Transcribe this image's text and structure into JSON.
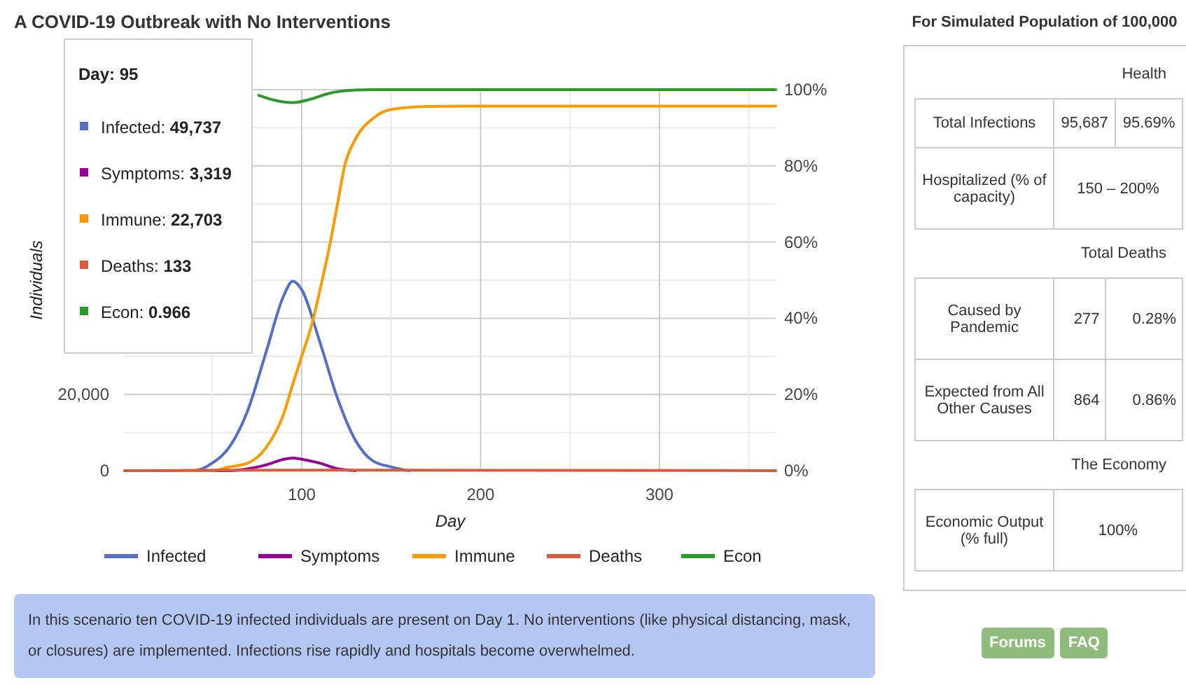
{
  "chart_data": [
    {
      "type": "line",
      "title": "A COVID-19 Outbreak with No Interventions",
      "xlabel": "Day",
      "ylabel": "Individuals",
      "xlim": [
        1,
        365
      ],
      "xticks": [
        {
          "value": 50,
          "label": null
        },
        100,
        {
          "value": 150,
          "label": null
        },
        200,
        {
          "value": 250,
          "label": null
        },
        300,
        {
          "value": 350,
          "label": null
        }
      ],
      "ylim": [
        0,
        100000
      ],
      "yticks": [
        {
          "value": 0,
          "label": "0"
        },
        {
          "value": 10000,
          "label": null
        },
        {
          "value": 20000,
          "label": "20,000"
        },
        {
          "value": 30000,
          "label": null
        },
        {
          "value": 40000,
          "label": null
        },
        {
          "value": 50000,
          "label": null
        },
        {
          "value": 60000,
          "label": null
        },
        {
          "value": 70000,
          "label": null
        },
        {
          "value": 80000,
          "label": null
        },
        {
          "value": 90000,
          "label": null
        },
        {
          "value": 100000,
          "label": null
        }
      ],
      "y2lim": [
        0,
        1
      ],
      "y2ticks": [
        {
          "value": 0,
          "label": "0%"
        },
        {
          "value": 0.2,
          "label": "20%"
        },
        {
          "value": 0.4,
          "label": "40%"
        },
        {
          "value": 0.6,
          "label": "60%"
        },
        {
          "value": 0.8,
          "label": "80%"
        },
        {
          "value": 1,
          "label": "100%"
        }
      ],
      "grid": true,
      "legend": "bottom",
      "series": [
        {
          "name": "Infected",
          "color": "#5470c6",
          "x": [
            1,
            40,
            50,
            60,
            70,
            80,
            90,
            95,
            100,
            110,
            120,
            130,
            140,
            150,
            160
          ],
          "values": [
            0,
            0,
            2000,
            6500,
            16000,
            31000,
            46000,
            49737,
            47500,
            34000,
            19000,
            8000,
            2500,
            1000,
            0
          ]
        },
        {
          "name": "Symptoms",
          "color": "#990099",
          "x": [
            1,
            60,
            70,
            80,
            90,
            95,
            100,
            110,
            120,
            130
          ],
          "values": [
            0,
            0,
            500,
            1500,
            3000,
            3319,
            3000,
            2000,
            500,
            0
          ]
        },
        {
          "name": "Immune",
          "color": "#ff9900",
          "x": [
            1,
            50,
            60,
            70,
            80,
            90,
            95,
            100,
            106,
            110,
            116,
            120,
            124,
            130,
            140,
            150,
            170,
            200,
            365
          ],
          "values": [
            0,
            0,
            1000,
            2000,
            6000,
            15000,
            22703,
            30000,
            39000,
            47000,
            60000,
            70000,
            80000,
            87000,
            92500,
            94800,
            95600,
            95687,
            95687
          ]
        },
        {
          "name": "Deaths",
          "color": "#dc5a3c",
          "x": [
            1,
            95,
            365
          ],
          "values": [
            0,
            133,
            0
          ]
        },
        {
          "name": "Econ",
          "color": "#2b9a2b",
          "axis": "y2",
          "x": [
            76,
            85,
            95,
            105,
            115,
            130,
            140,
            365
          ],
          "values": [
            0.985,
            0.972,
            0.966,
            0.975,
            0.99,
            0.999,
            1,
            1
          ]
        }
      ],
      "annotations": [
        "Day: 95",
        "Infected: 49,737",
        "Symptoms: 3,319",
        "Immune: 22,703",
        "Deaths: 133",
        "Econ: 0.966",
        "In this scenario ten COVID-19 infected individuals are present on Day 1. No interventions (like physical distancing, mask, or closures) are implemented. Infections rise rapidly and hospitals become overwhelmed."
      ]
    },
    {
      "type": "other",
      "title": "For Simulated Population of 100,000",
      "annotations": [
        "Health",
        "Total Infections",
        "95,687",
        "95.69%",
        "Hospitalized (% of capacity)",
        "150 – 200%",
        "Total Deaths",
        "Caused by Pandemic",
        "277",
        "0.28%",
        "Expected from All Other Causes",
        "864",
        "0.86%",
        "The Economy",
        "Economic Output (% full)",
        "100%",
        "Forums",
        "FAQ"
      ]
    }
  ]
}
